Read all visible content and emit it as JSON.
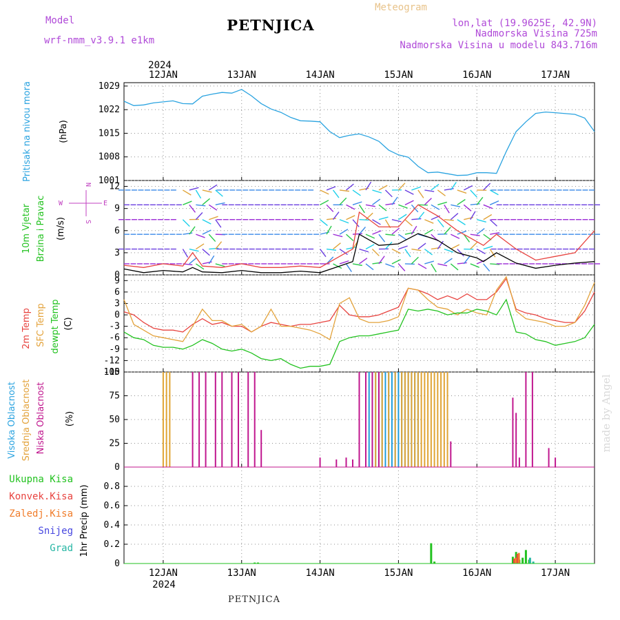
{
  "header": {
    "model_label": "Model",
    "model_name": "wrf-nmm_v3.9.1 e1km",
    "title": "PETNJICA",
    "meteogram": "Meteogram",
    "lonlat": "lon,lat (19.9625E, 42.9N)",
    "elevation": "Nadmorska Visina 725m",
    "model_elevation": "Nadmorska Visina u modelu 843.716m",
    "year": "2024",
    "footer": "PETNJICA",
    "watermark": "made by Angel"
  },
  "colors": {
    "pressure": "#2aa3e0",
    "temp2m": "#e8433f",
    "sfc": "#e3a23a",
    "dewpt": "#22c21f",
    "high_cloud": "#1e9ddd",
    "mid_cloud": "#e0a434",
    "low_cloud": "#c0168e",
    "total_precip": "#22c21f",
    "conv": "#e8433f",
    "frozen": "#f07c2a",
    "snow": "#4646e0",
    "graupel": "#26b6a4",
    "model": "#b04ad8",
    "meteogram": "#e8c38a",
    "ylab_blue": "#2aa3e0",
    "ylab_green": "#22c21f",
    "ylab_red": "#e8433f",
    "ylab_orange": "#e3a23a",
    "ylab_magenta": "#c0168e",
    "compass": "#c040c0"
  },
  "dates": [
    "12JAN",
    "13JAN",
    "14JAN",
    "15JAN",
    "16JAN",
    "17JAN"
  ],
  "chart_data": [
    {
      "id": "pressure",
      "type": "line",
      "ylabel_lines": [
        "Pritisak na nivou mora",
        "(hPa)"
      ],
      "x_unit": "hours from 2024-01-11 12:00",
      "ylim": [
        1001,
        1030
      ],
      "yticks": [
        1001,
        1008,
        1015,
        1022,
        1029
      ],
      "grid": true,
      "series": [
        {
          "key": "pressure",
          "x": [
            0,
            3,
            6,
            9,
            12,
            15,
            18,
            21,
            24,
            27,
            30,
            33,
            36,
            39,
            42,
            45,
            48,
            51,
            54,
            57,
            60,
            63,
            66,
            69,
            72,
            75,
            78,
            81,
            84,
            87,
            90,
            93,
            96,
            99,
            102,
            105,
            108,
            111,
            114,
            117,
            120,
            123,
            126,
            129,
            132,
            138,
            141,
            144
          ],
          "values": [
            1024.5,
            1023.2,
            1023.4,
            1024,
            1024.3,
            1024.6,
            1023.8,
            1023.7,
            1026,
            1026.6,
            1027.1,
            1026.9,
            1028,
            1026.1,
            1023.8,
            1022.2,
            1021.2,
            1019.7,
            1018.7,
            1018.6,
            1018.4,
            1015.5,
            1013.7,
            1014.4,
            1014.8,
            1013.9,
            1012.6,
            1010,
            1008.6,
            1007.9,
            1005.2,
            1003.3,
            1003.5,
            1003,
            1002.5,
            1002.6,
            1003.3,
            1003.3,
            1003.1,
            1009.6,
            1015.5,
            1018.4,
            1020.9,
            1021.3,
            1021.1,
            1020.6,
            1019.5,
            1015.5
          ]
        }
      ]
    },
    {
      "id": "wind",
      "type": "line",
      "ylabel_lines": [
        "10m Vjetar",
        "Brzina i Pravac",
        "(m/s)"
      ],
      "x_unit": "hours from 2024-01-11 12:00",
      "ylim": [
        0,
        12.8
      ],
      "yticks": [
        0,
        3,
        6,
        9,
        12
      ],
      "grid": true,
      "compass": [
        "N",
        "S",
        "E",
        "W"
      ],
      "series": [
        {
          "key": "speed",
          "x": [
            0,
            6,
            12,
            18,
            21,
            24,
            30,
            36,
            42,
            48,
            54,
            60,
            66,
            70,
            72,
            78,
            84,
            90,
            96,
            102,
            108,
            110,
            114,
            120,
            126,
            132,
            138,
            144
          ],
          "values": [
            0.8,
            0.3,
            0.6,
            0.4,
            1.0,
            0.4,
            0.3,
            0.6,
            0.3,
            0.3,
            0.5,
            0.3,
            1.2,
            1.8,
            5.5,
            4.0,
            4.2,
            5.6,
            4.7,
            3.0,
            2.3,
            1.8,
            3.0,
            1.6,
            0.9,
            1.3,
            1.6,
            1.8
          ]
        },
        {
          "key": "gust",
          "x": [
            0,
            6,
            12,
            18,
            21,
            24,
            30,
            36,
            42,
            48,
            54,
            60,
            66,
            70,
            72,
            78,
            84,
            90,
            96,
            102,
            108,
            110,
            114,
            120,
            126,
            132,
            138,
            144
          ],
          "values": [
            1.3,
            1.0,
            1.5,
            1.2,
            3.0,
            1.2,
            1.0,
            1.5,
            1.0,
            1.0,
            1.2,
            1.0,
            2.5,
            3.5,
            8.5,
            6.5,
            6.5,
            9.5,
            8.0,
            6.0,
            4.5,
            4.0,
            5.5,
            3.5,
            2.0,
            2.5,
            3.0,
            6.0
          ]
        }
      ]
    },
    {
      "id": "temperature",
      "type": "line",
      "ylabel_lines": [
        "2m Temp",
        "SFC Temp",
        "dewpt Temp",
        "(C)"
      ],
      "x_unit": "hours from 2024-01-11 12:00",
      "ylim": [
        -15,
        10.5
      ],
      "yticks": [
        -15,
        -12,
        -9,
        -6,
        -3,
        0,
        3,
        6,
        9
      ],
      "grid": true,
      "series": [
        {
          "key": "temp2m",
          "x": [
            0,
            3,
            6,
            9,
            12,
            15,
            18,
            21,
            24,
            27,
            30,
            33,
            36,
            39,
            42,
            45,
            48,
            51,
            54,
            57,
            60,
            63,
            66,
            69,
            72,
            75,
            78,
            81,
            84,
            87,
            90,
            93,
            96,
            99,
            102,
            105,
            108,
            111,
            114,
            117,
            120,
            123,
            126,
            129,
            132,
            135,
            138,
            141,
            144
          ],
          "values": [
            0.8,
            0.0,
            -2.0,
            -3.5,
            -4.0,
            -4.0,
            -4.5,
            -2.5,
            -1.0,
            -2.5,
            -2.0,
            -3.0,
            -3.0,
            -4.5,
            -3.0,
            -2.0,
            -2.5,
            -3.0,
            -2.5,
            -2.5,
            -2.0,
            -1.5,
            2.5,
            0.0,
            -0.5,
            -0.5,
            0.0,
            1.0,
            2.0,
            7.0,
            6.5,
            5.5,
            4.0,
            5.0,
            4.0,
            5.5,
            4.0,
            4.0,
            6.0,
            9.5,
            1.5,
            0.5,
            0.0,
            -1.0,
            -1.5,
            -2.0,
            -2.0,
            1.0,
            6.0
          ]
        },
        {
          "key": "sfc",
          "x": [
            0,
            3,
            6,
            9,
            12,
            15,
            18,
            21,
            24,
            27,
            30,
            33,
            36,
            39,
            42,
            45,
            48,
            51,
            54,
            57,
            60,
            63,
            66,
            69,
            72,
            75,
            78,
            81,
            84,
            87,
            90,
            93,
            96,
            99,
            102,
            105,
            108,
            111,
            114,
            117,
            120,
            123,
            126,
            129,
            132,
            135,
            138,
            141,
            144
          ],
          "values": [
            4.0,
            -2.5,
            -4.0,
            -5.5,
            -6.0,
            -6.5,
            -7.0,
            -3.0,
            1.5,
            -1.5,
            -1.5,
            -3.0,
            -2.5,
            -4.5,
            -3.0,
            1.5,
            -3.0,
            -3.0,
            -3.5,
            -4.0,
            -5.0,
            -6.5,
            3.0,
            4.5,
            -1.0,
            -2.0,
            -2.0,
            -1.5,
            -0.5,
            7.0,
            6.5,
            4.0,
            2.0,
            1.5,
            0.0,
            1.5,
            0.5,
            0.0,
            6.5,
            10.0,
            1.0,
            -1.0,
            -1.5,
            -2.0,
            -3.0,
            -3.0,
            -2.0,
            2.5,
            8.5
          ]
        },
        {
          "key": "dewpt",
          "x": [
            0,
            3,
            6,
            9,
            12,
            15,
            18,
            21,
            24,
            27,
            30,
            33,
            36,
            39,
            42,
            45,
            48,
            51,
            54,
            57,
            60,
            63,
            66,
            69,
            72,
            75,
            78,
            81,
            84,
            87,
            90,
            93,
            96,
            99,
            102,
            105,
            108,
            111,
            114,
            117,
            120,
            123,
            126,
            129,
            132,
            135,
            138,
            141,
            144
          ],
          "values": [
            -4.5,
            -6.0,
            -6.5,
            -8.0,
            -8.5,
            -8.5,
            -9.0,
            -8.0,
            -6.5,
            -7.5,
            -9.0,
            -9.5,
            -9.0,
            -10.0,
            -11.5,
            -12.0,
            -11.5,
            -13.0,
            -14.0,
            -13.5,
            -13.5,
            -13.0,
            -7.0,
            -6.0,
            -5.5,
            -5.5,
            -5.0,
            -4.5,
            -4.0,
            1.5,
            1.0,
            1.5,
            1.0,
            0.0,
            0.5,
            0.5,
            1.5,
            1.0,
            0.0,
            4.0,
            -4.5,
            -5.0,
            -6.5,
            -7.0,
            -8.0,
            -7.5,
            -7.0,
            -6.0,
            -2.5
          ]
        }
      ]
    },
    {
      "id": "cloud",
      "type": "bar",
      "ylabel_lines": [
        "Visoka Oblacnost",
        "Srednja Oblacnost",
        "Niska Oblacnost",
        "(%)"
      ],
      "x_unit": "hours from 2024-01-11 12:00",
      "ylim": [
        0,
        100
      ],
      "yticks": [
        0,
        25,
        50,
        75,
        100
      ],
      "grid": true,
      "series": [
        {
          "key": "high",
          "x": [
            75,
            76,
            77,
            78,
            79,
            80,
            81,
            82,
            83,
            84,
            85,
            86,
            87,
            88,
            89,
            90
          ],
          "values": [
            100,
            100,
            100,
            100,
            100,
            100,
            100,
            100,
            100,
            100,
            100,
            100,
            100,
            100,
            100,
            100
          ]
        },
        {
          "key": "mid",
          "x": [
            12,
            13,
            14,
            77,
            79,
            81,
            83,
            85,
            86,
            87,
            88,
            89,
            90,
            91,
            92,
            93,
            94,
            95,
            96,
            97,
            98,
            99
          ],
          "values": [
            100,
            100,
            100,
            100,
            100,
            100,
            100,
            100,
            100,
            100,
            100,
            100,
            100,
            100,
            100,
            100,
            100,
            100,
            100,
            100,
            100,
            100
          ]
        },
        {
          "key": "low",
          "x": [
            21,
            23,
            25,
            28,
            30,
            33,
            35,
            38,
            40,
            42,
            60,
            65,
            68,
            70,
            72,
            74,
            76,
            78,
            100,
            119,
            120,
            121,
            123,
            125,
            130,
            132
          ],
          "values": [
            100,
            100,
            100,
            100,
            100,
            100,
            100,
            100,
            100,
            39,
            10,
            8,
            10,
            8,
            100,
            100,
            100,
            100,
            27,
            73,
            57,
            10,
            100,
            100,
            20,
            10
          ]
        }
      ]
    },
    {
      "id": "precip",
      "type": "bar",
      "ylabel_lines": [
        "1hr Precip (mm)"
      ],
      "legend": [
        "Ukupna  Kisa",
        "Konvek.Kisa",
        "Zaledj.Kisa",
        "Snijeg",
        "Grad"
      ],
      "x_unit": "hours from 2024-01-11 12:00",
      "ylim": [
        0,
        1.0
      ],
      "yticks": [
        0,
        0.2,
        0.4,
        0.6,
        0.8
      ],
      "grid": true,
      "series": [
        {
          "key": "total",
          "x": [
            40,
            41,
            94,
            95,
            119,
            120,
            121,
            122,
            123,
            124
          ],
          "values": [
            0.01,
            0.01,
            0.21,
            0.02,
            0.07,
            0.12,
            0.04,
            0.06,
            0.14,
            0.04
          ]
        },
        {
          "key": "conv",
          "x": [
            119,
            120
          ],
          "values": [
            0.05,
            0.1
          ]
        },
        {
          "key": "frozen",
          "x": [
            119,
            120
          ],
          "values": [
            0.06,
            0.11
          ]
        },
        {
          "key": "graupel",
          "x": [
            123,
            124
          ],
          "values": [
            0.06,
            0.02
          ]
        }
      ]
    }
  ]
}
